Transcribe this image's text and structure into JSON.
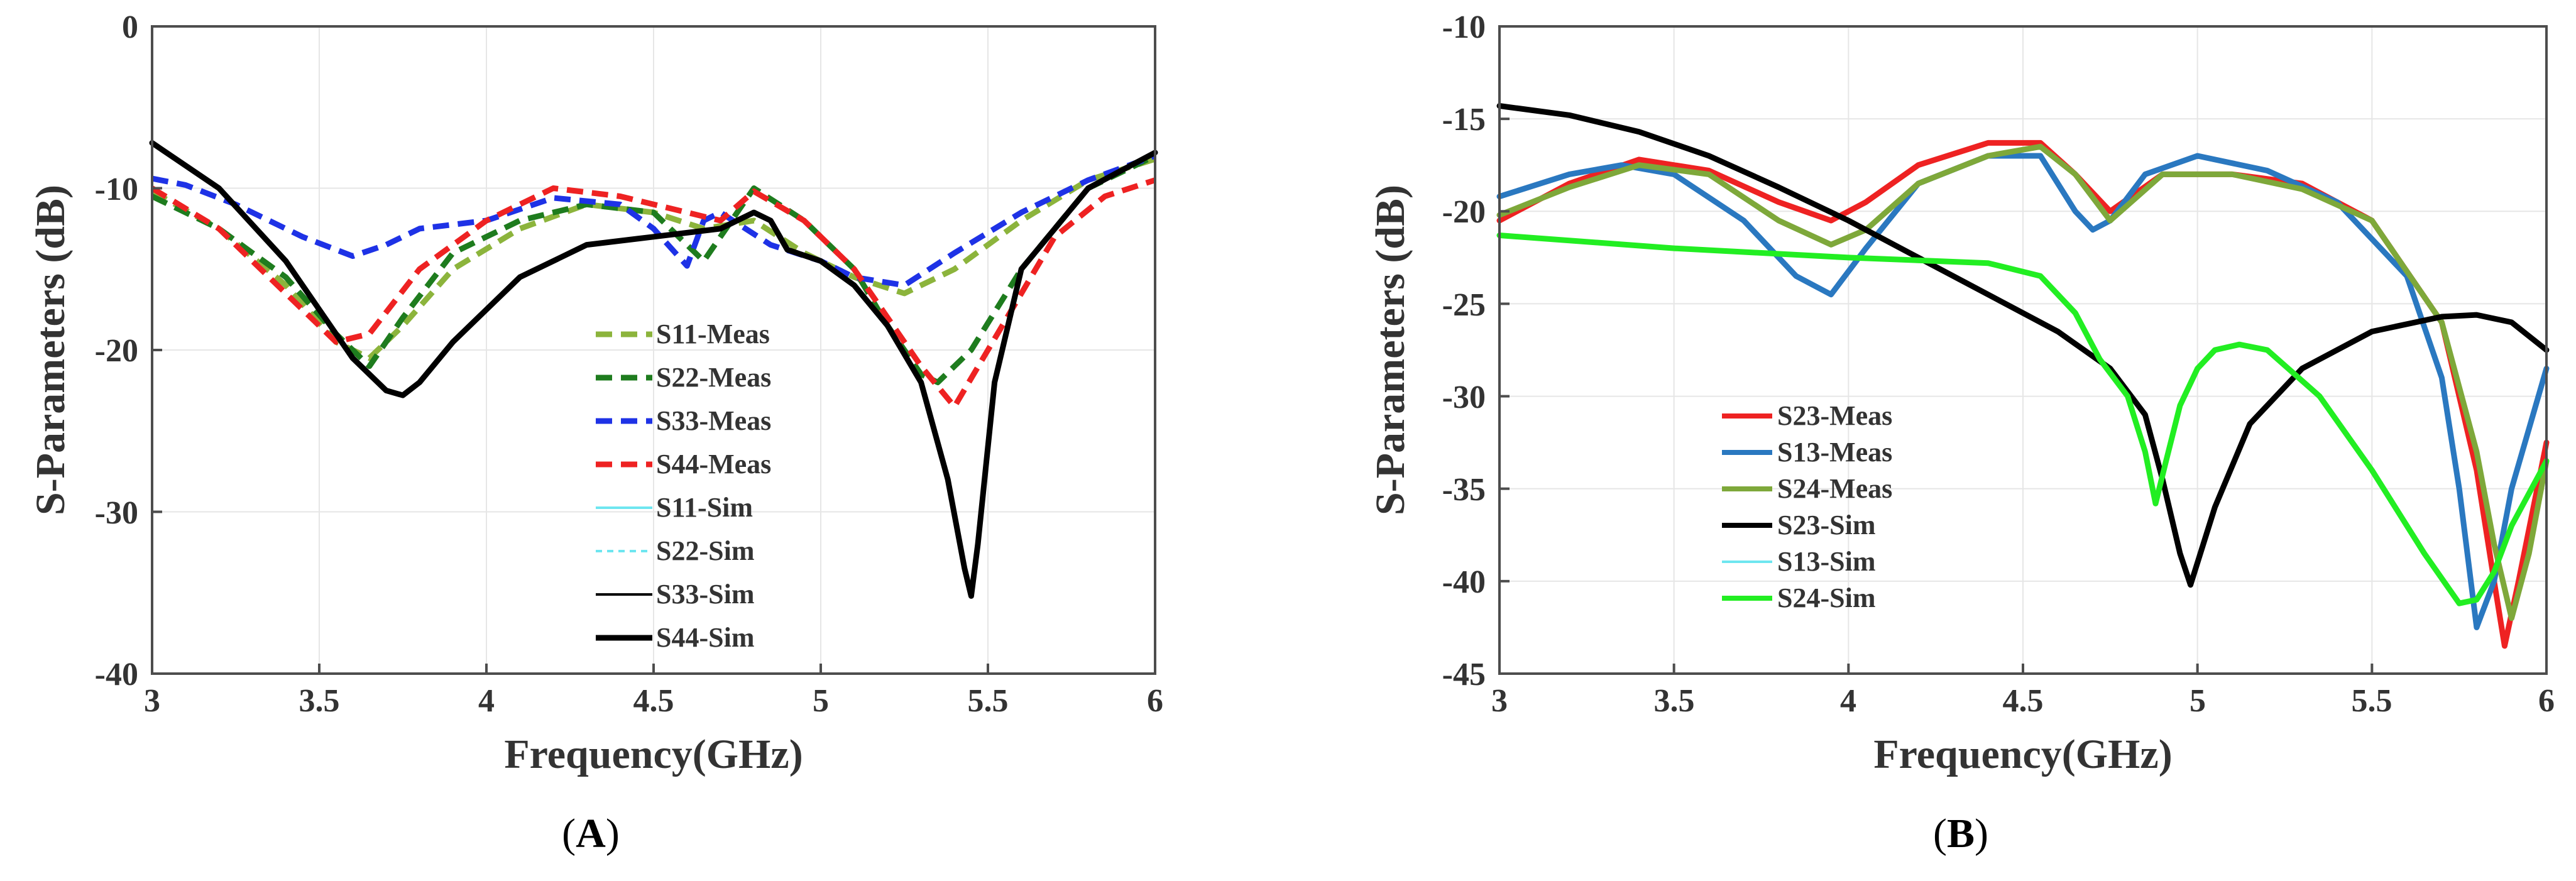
{
  "chart_data": [
    {
      "type": "line",
      "panel_label": "A",
      "xlabel": "Frequency(GHz)",
      "ylabel": "S-Parameters (dB)",
      "xlim": [
        3,
        6
      ],
      "ylim": [
        -40,
        0
      ],
      "xticks": [
        "3",
        "3.5",
        "4",
        "4.5",
        "5",
        "5.5",
        "6"
      ],
      "yticks": [
        "0",
        "-10",
        "-20",
        "-30",
        "-40"
      ],
      "grid": true,
      "legend_position": "center-right",
      "series": [
        {
          "name": "S11-Meas",
          "color": "#8cb43c",
          "dash": "dashed",
          "weight": "thick",
          "x": [
            3.0,
            3.2,
            3.4,
            3.55,
            3.65,
            3.75,
            3.9,
            4.1,
            4.3,
            4.5,
            4.65,
            4.8,
            4.95,
            5.1,
            5.25,
            5.4,
            5.6,
            5.8,
            6.0
          ],
          "y": [
            -10.2,
            -12.5,
            -16.0,
            -19.5,
            -20.5,
            -18.5,
            -15.0,
            -12.5,
            -11.0,
            -11.5,
            -12.5,
            -12.0,
            -14.0,
            -15.5,
            -16.5,
            -15.0,
            -12.0,
            -9.5,
            -8.2
          ]
        },
        {
          "name": "S22-Meas",
          "color": "#1e7c1e",
          "dash": "dashed",
          "weight": "thick",
          "x": [
            3.0,
            3.2,
            3.4,
            3.55,
            3.65,
            3.75,
            3.9,
            4.1,
            4.3,
            4.5,
            4.65,
            4.8,
            4.95,
            5.1,
            5.2,
            5.3,
            5.35,
            5.45,
            5.6,
            5.8,
            6.0
          ],
          "y": [
            -10.5,
            -12.5,
            -15.5,
            -19.0,
            -21.0,
            -18.0,
            -14.0,
            -12.0,
            -11.0,
            -11.5,
            -14.5,
            -10.0,
            -12.0,
            -15.0,
            -18.5,
            -21.5,
            -22.0,
            -20.0,
            -15.0,
            -10.0,
            -8.0
          ]
        },
        {
          "name": "S33-Meas",
          "color": "#1e32e6",
          "dash": "dashed",
          "weight": "thick",
          "x": [
            3.0,
            3.1,
            3.25,
            3.45,
            3.6,
            3.7,
            3.8,
            4.0,
            4.2,
            4.4,
            4.5,
            4.6,
            4.65,
            4.7,
            4.85,
            5.0,
            5.1,
            5.25,
            5.4,
            5.6,
            5.8,
            6.0
          ],
          "y": [
            -9.4,
            -9.8,
            -11.0,
            -13.0,
            -14.2,
            -13.5,
            -12.5,
            -12.0,
            -10.6,
            -11.0,
            -12.5,
            -14.8,
            -12.0,
            -11.5,
            -13.5,
            -14.5,
            -15.5,
            -16.0,
            -14.0,
            -11.5,
            -9.5,
            -8.0
          ]
        },
        {
          "name": "S44-Meas",
          "color": "#ee2222",
          "dash": "dashed",
          "weight": "thick",
          "x": [
            3.0,
            3.2,
            3.4,
            3.55,
            3.65,
            3.8,
            4.0,
            4.2,
            4.4,
            4.6,
            4.7,
            4.8,
            4.95,
            5.1,
            5.2,
            5.3,
            5.4,
            5.5,
            5.7,
            5.85,
            6.0
          ],
          "y": [
            -10.0,
            -12.5,
            -16.5,
            -19.5,
            -19.0,
            -15.0,
            -12.0,
            -10.0,
            -10.5,
            -11.5,
            -12.0,
            -10.2,
            -12.0,
            -15.0,
            -18.0,
            -21.0,
            -23.5,
            -20.0,
            -13.0,
            -10.5,
            -9.5
          ]
        },
        {
          "name": "S11-Sim",
          "color": "#6ee6f0",
          "dash": "solid",
          "weight": "thin",
          "x": [],
          "y": []
        },
        {
          "name": "S22-Sim",
          "color": "#6ee6f0",
          "dash": "dotted",
          "weight": "thin",
          "x": [],
          "y": []
        },
        {
          "name": "S33-Sim",
          "color": "#000000",
          "dash": "solid",
          "weight": "thin",
          "x": [],
          "y": []
        },
        {
          "name": "S44-Sim",
          "color": "#000000",
          "dash": "solid",
          "weight": "thick",
          "x": [
            3.0,
            3.2,
            3.4,
            3.6,
            3.7,
            3.75,
            3.8,
            3.9,
            4.1,
            4.3,
            4.5,
            4.7,
            4.8,
            4.85,
            4.9,
            5.0,
            5.1,
            5.2,
            5.3,
            5.38,
            5.43,
            5.45,
            5.47,
            5.52,
            5.6,
            5.8,
            6.0
          ],
          "y": [
            -7.2,
            -10.0,
            -14.5,
            -20.5,
            -22.5,
            -22.8,
            -22.0,
            -19.5,
            -15.5,
            -13.5,
            -13.0,
            -12.5,
            -11.5,
            -12.0,
            -13.8,
            -14.5,
            -16.0,
            -18.5,
            -22.0,
            -28.0,
            -33.5,
            -35.2,
            -32.0,
            -22.0,
            -15.0,
            -10.0,
            -7.8
          ]
        }
      ]
    },
    {
      "type": "line",
      "panel_label": "B",
      "xlabel": "Frequency(GHz)",
      "ylabel": "S-Parameters (dB)",
      "xlim": [
        3,
        6
      ],
      "ylim": [
        -45,
        -10
      ],
      "xticks": [
        "3",
        "3.5",
        "4",
        "4.5",
        "5",
        "5.5",
        "6"
      ],
      "yticks": [
        "-10",
        "-15",
        "-20",
        "-25",
        "-30",
        "-35",
        "-40",
        "-45"
      ],
      "grid": true,
      "legend_position": "lower-left",
      "series": [
        {
          "name": "S23-Meas",
          "color": "#ee2222",
          "dash": "solid",
          "weight": "thick",
          "x": [
            3.0,
            3.2,
            3.4,
            3.6,
            3.8,
            3.95,
            4.05,
            4.2,
            4.4,
            4.55,
            4.65,
            4.75,
            4.9,
            5.1,
            5.3,
            5.5,
            5.7,
            5.8,
            5.85,
            5.88,
            5.92,
            6.0
          ],
          "y": [
            -20.5,
            -18.5,
            -17.2,
            -17.8,
            -19.5,
            -20.5,
            -19.5,
            -17.5,
            -16.3,
            -16.3,
            -18.0,
            -20.0,
            -18.0,
            -18.0,
            -18.5,
            -20.5,
            -26.0,
            -34.0,
            -40.0,
            -43.5,
            -40.0,
            -32.5
          ]
        },
        {
          "name": "S13-Meas",
          "color": "#2a78c0",
          "dash": "solid",
          "weight": "thick",
          "x": [
            3.0,
            3.2,
            3.35,
            3.5,
            3.7,
            3.85,
            3.95,
            4.05,
            4.2,
            4.4,
            4.55,
            4.65,
            4.7,
            4.75,
            4.85,
            5.0,
            5.2,
            5.4,
            5.6,
            5.7,
            5.75,
            5.8,
            5.85,
            5.9,
            6.0
          ],
          "y": [
            -19.2,
            -18.0,
            -17.5,
            -18.0,
            -20.5,
            -23.5,
            -24.5,
            -22.0,
            -18.5,
            -17.0,
            -17.0,
            -20.0,
            -21.0,
            -20.5,
            -18.0,
            -17.0,
            -17.8,
            -19.5,
            -23.5,
            -29.0,
            -35.0,
            -42.5,
            -40.0,
            -35.0,
            -28.5
          ]
        },
        {
          "name": "S24-Meas",
          "color": "#7ea83a",
          "dash": "solid",
          "weight": "thick",
          "x": [
            3.0,
            3.2,
            3.4,
            3.6,
            3.8,
            3.95,
            4.05,
            4.2,
            4.4,
            4.55,
            4.65,
            4.75,
            4.9,
            5.1,
            5.3,
            5.5,
            5.7,
            5.8,
            5.85,
            5.9,
            5.95,
            6.0
          ],
          "y": [
            -20.2,
            -18.7,
            -17.5,
            -18.0,
            -20.5,
            -21.8,
            -21.0,
            -18.5,
            -17.0,
            -16.5,
            -18.0,
            -20.5,
            -18.0,
            -18.0,
            -18.8,
            -20.5,
            -26.0,
            -33.0,
            -38.0,
            -42.0,
            -38.5,
            -33.5
          ]
        },
        {
          "name": "S23-Sim",
          "color": "#000000",
          "dash": "solid",
          "weight": "thick",
          "x": [
            3.0,
            3.2,
            3.4,
            3.6,
            3.8,
            4.0,
            4.2,
            4.4,
            4.6,
            4.75,
            4.85,
            4.9,
            4.95,
            4.98,
            5.0,
            5.05,
            5.15,
            5.3,
            5.5,
            5.7,
            5.8,
            5.9,
            6.0
          ],
          "y": [
            -14.3,
            -14.8,
            -15.7,
            -17.0,
            -18.7,
            -20.5,
            -22.5,
            -24.5,
            -26.5,
            -28.5,
            -31.0,
            -34.5,
            -38.5,
            -40.2,
            -39.0,
            -36.0,
            -31.5,
            -28.5,
            -26.5,
            -25.7,
            -25.6,
            -26.0,
            -27.5
          ]
        },
        {
          "name": "S13-Sim",
          "color": "#6ee6f0",
          "dash": "solid",
          "weight": "thin",
          "x": [],
          "y": []
        },
        {
          "name": "S24-Sim",
          "color": "#22ee22",
          "dash": "solid",
          "weight": "thick",
          "x": [
            3.0,
            3.5,
            4.0,
            4.4,
            4.55,
            4.65,
            4.72,
            4.8,
            4.85,
            4.88,
            4.91,
            4.95,
            5.0,
            5.05,
            5.12,
            5.2,
            5.35,
            5.5,
            5.65,
            5.75,
            5.8,
            5.85,
            5.9,
            6.0
          ],
          "y": [
            -21.3,
            -22.0,
            -22.5,
            -22.8,
            -23.5,
            -25.5,
            -28.0,
            -30.0,
            -33.0,
            -35.8,
            -33.5,
            -30.5,
            -28.5,
            -27.5,
            -27.2,
            -27.5,
            -30.0,
            -34.0,
            -38.5,
            -41.2,
            -41.0,
            -39.5,
            -37.0,
            -33.5
          ]
        }
      ]
    }
  ]
}
